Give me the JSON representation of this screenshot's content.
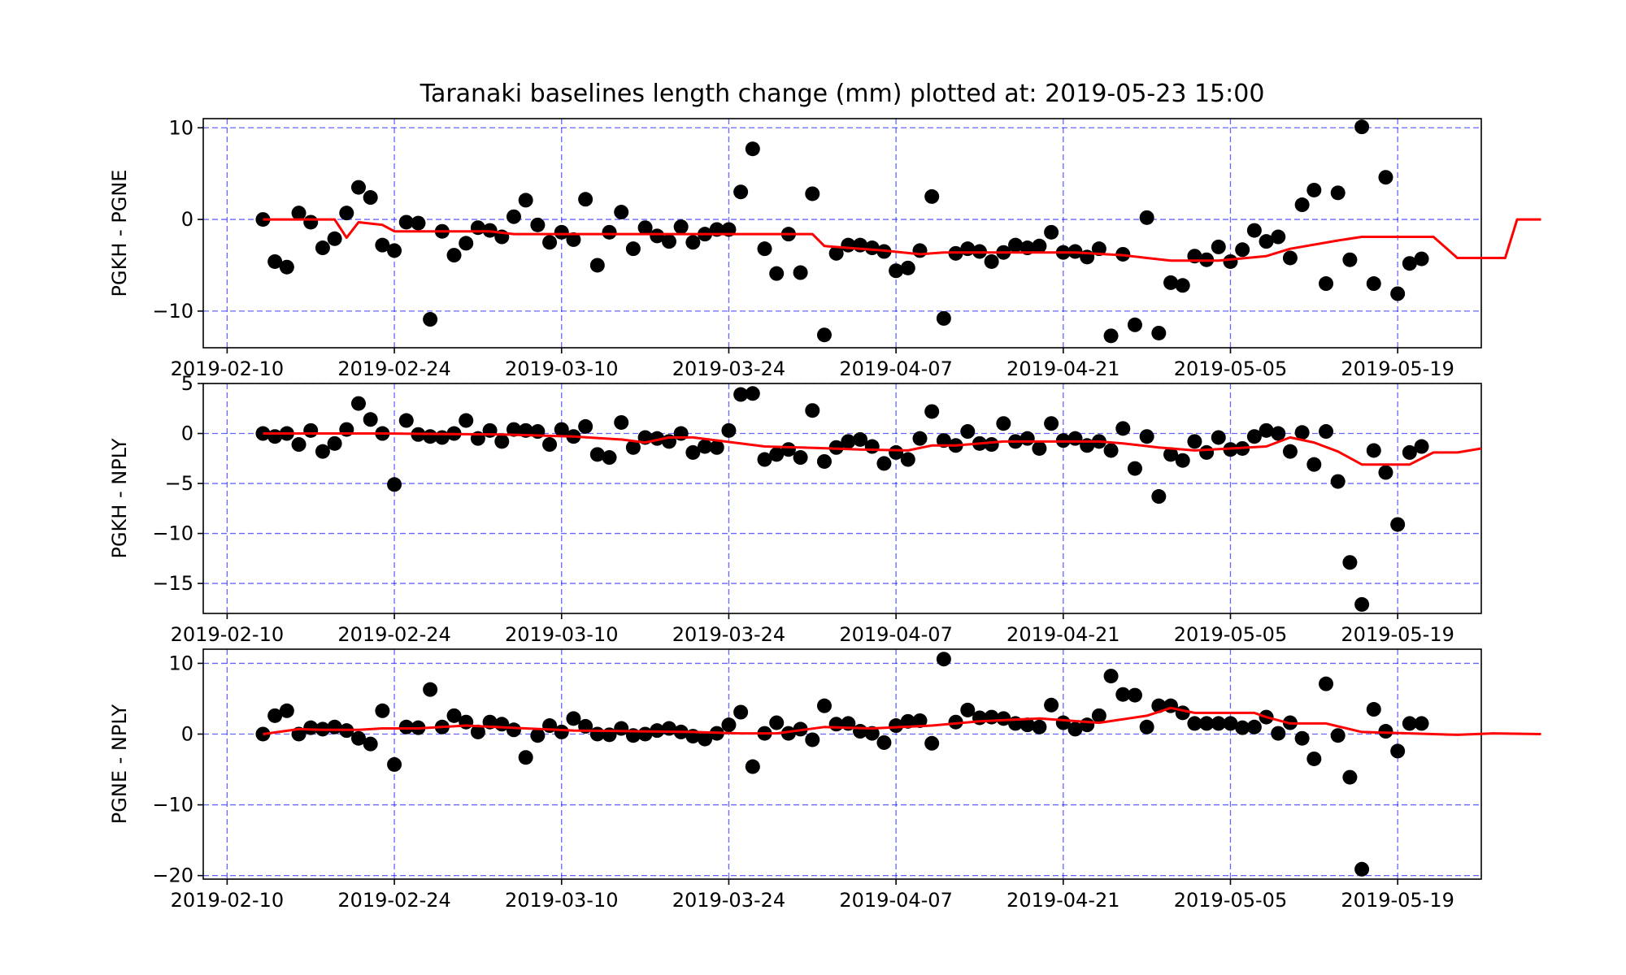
{
  "title": "Taranaki baselines length change (mm) plotted at: 2019-05-23 15:00",
  "colors": {
    "points": "#000000",
    "average_line": "#ff0000",
    "grid": "#0000ff",
    "frame": "#000000"
  },
  "chart_data": [
    {
      "type": "scatter",
      "ylabel": "PGKH - PGNE",
      "xlim": [
        "2019-02-08",
        "2019-05-26"
      ],
      "ylim": [
        -14,
        11
      ],
      "x_ticks": [
        "2019-02-10",
        "2019-02-24",
        "2019-03-10",
        "2019-03-24",
        "2019-04-07",
        "2019-04-21",
        "2019-05-05",
        "2019-05-19"
      ],
      "y_ticks": [
        10,
        0,
        -10
      ],
      "y_tick_labels": [
        "10",
        "0",
        "−10"
      ],
      "grid": true,
      "start_date": "2019-02-13",
      "points": [
        0,
        -4.6,
        -5.2,
        0.7,
        -0.3,
        -3.1,
        -2.1,
        0.7,
        3.5,
        2.4,
        -2.8,
        -3.4,
        -0.3,
        -0.4,
        -10.9,
        -1.3,
        -3.9,
        -2.6,
        -0.9,
        -1.2,
        -1.9,
        0.3,
        2.1,
        -0.6,
        -2.5,
        -1.4,
        -2.2,
        2.2,
        -5.0,
        -1.4,
        0.8,
        -3.2,
        -0.9,
        -1.8,
        -2.4,
        -0.8,
        -2.5,
        -1.6,
        -1.1,
        -1.1,
        3.0,
        7.7,
        -3.2,
        -5.9,
        -1.6,
        -5.8,
        2.8,
        -12.6,
        -3.7,
        -2.8,
        -2.8,
        -3.1,
        -3.5,
        -5.6,
        -5.3,
        -3.4,
        2.5,
        -10.8,
        -3.7,
        -3.2,
        -3.5,
        -4.6,
        -3.6,
        -2.8,
        -3.1,
        -2.9,
        -1.4,
        -3.6,
        -3.5,
        -4.1,
        -3.2,
        -12.7,
        -3.8,
        -11.5,
        0.2,
        -12.4,
        -6.9,
        -7.2,
        -4.0,
        -4.4,
        -3.0,
        -4.6,
        -3.3,
        -1.2,
        -2.4,
        -1.9,
        -4.2,
        1.6,
        3.2,
        -7.0,
        2.9,
        -4.4,
        10.1,
        -7.0,
        4.6,
        -8.1,
        -4.8,
        -4.3
      ],
      "average_line": [
        [
          0,
          0
        ],
        [
          6,
          0
        ],
        [
          7,
          -2.0
        ],
        [
          8,
          -0.3
        ],
        [
          10,
          -0.6
        ],
        [
          11,
          -1.3
        ],
        [
          19,
          -1.3
        ],
        [
          21,
          -1.6
        ],
        [
          33,
          -1.6
        ],
        [
          35,
          -1.6
        ],
        [
          46,
          -1.6
        ],
        [
          47,
          -2.9
        ],
        [
          52,
          -3.4
        ],
        [
          55,
          -3.8
        ],
        [
          57,
          -3.6
        ],
        [
          68,
          -3.6
        ],
        [
          72,
          -3.9
        ],
        [
          74,
          -4.2
        ],
        [
          76,
          -4.5
        ],
        [
          80,
          -4.5
        ],
        [
          84,
          -4.0
        ],
        [
          86,
          -3.2
        ],
        [
          90,
          -2.3
        ],
        [
          92,
          -1.9
        ],
        [
          98,
          -1.9
        ],
        [
          100,
          -4.2
        ],
        [
          104,
          -4.2
        ],
        [
          105,
          0
        ],
        [
          107,
          0
        ]
      ]
    },
    {
      "type": "scatter",
      "ylabel": "PGKH - NPLY",
      "xlim": [
        "2019-02-08",
        "2019-05-26"
      ],
      "ylim": [
        -18,
        5
      ],
      "x_ticks": [
        "2019-02-10",
        "2019-02-24",
        "2019-03-10",
        "2019-03-24",
        "2019-04-07",
        "2019-04-21",
        "2019-05-05",
        "2019-05-19"
      ],
      "y_ticks": [
        5,
        0,
        -5,
        -10,
        -15
      ],
      "y_tick_labels": [
        "5",
        "0",
        "−5",
        "−10",
        "−15"
      ],
      "grid": true,
      "start_date": "2019-02-13",
      "points": [
        0,
        -0.3,
        0,
        -1.1,
        0.3,
        -1.8,
        -1.0,
        0.4,
        3.0,
        1.4,
        0,
        -5.1,
        1.3,
        -0.1,
        -0.3,
        -0.4,
        0,
        1.3,
        -0.5,
        0.3,
        -0.8,
        0.4,
        0.3,
        0.2,
        -1.1,
        0.4,
        -0.3,
        0.7,
        -2.1,
        -2.4,
        1.1,
        -1.4,
        -0.4,
        -0.5,
        -0.8,
        0,
        -1.9,
        -1.3,
        -1.4,
        0.3,
        3.9,
        4.0,
        -2.6,
        -2.1,
        -1.6,
        -2.4,
        2.3,
        -2.8,
        -1.4,
        -0.8,
        -0.6,
        -1.3,
        -3.0,
        -1.9,
        -2.6,
        -0.5,
        2.2,
        -0.7,
        -1.2,
        0.2,
        -1.0,
        -1.1,
        1.0,
        -0.8,
        -0.5,
        -1.5,
        1.0,
        -0.7,
        -0.5,
        -1.2,
        -0.8,
        -1.7,
        0.5,
        -3.5,
        -0.3,
        -6.3,
        -2.1,
        -2.7,
        -0.8,
        -1.9,
        -0.4,
        -1.6,
        -1.5,
        -0.3,
        0.3,
        0,
        -1.8,
        0.1,
        -3.1,
        0.2,
        -4.8,
        -12.9,
        -17.1,
        -1.7,
        -3.9,
        -9.1,
        -1.9,
        -1.3
      ],
      "average_line": [
        [
          0,
          0
        ],
        [
          10,
          0
        ],
        [
          20,
          -0.1
        ],
        [
          26,
          -0.3
        ],
        [
          30,
          -0.6
        ],
        [
          32,
          -0.9
        ],
        [
          34,
          -0.4
        ],
        [
          36,
          -0.4
        ],
        [
          40,
          -1.0
        ],
        [
          42,
          -1.3
        ],
        [
          45,
          -1.4
        ],
        [
          50,
          -1.6
        ],
        [
          54,
          -1.7
        ],
        [
          56,
          -1.2
        ],
        [
          58,
          -1.2
        ],
        [
          62,
          -0.8
        ],
        [
          70,
          -0.8
        ],
        [
          72,
          -1.0
        ],
        [
          75,
          -1.4
        ],
        [
          78,
          -1.7
        ],
        [
          81,
          -1.5
        ],
        [
          84,
          -1.3
        ],
        [
          86,
          -0.4
        ],
        [
          88,
          -0.9
        ],
        [
          90,
          -1.8
        ],
        [
          92,
          -3.1
        ],
        [
          96,
          -3.1
        ],
        [
          98,
          -1.9
        ],
        [
          100,
          -1.9
        ],
        [
          102,
          -1.5
        ]
      ]
    },
    {
      "type": "scatter",
      "ylabel": "PGNE - NPLY",
      "xlim": [
        "2019-02-08",
        "2019-05-26"
      ],
      "ylim": [
        -20.5,
        12
      ],
      "x_ticks": [
        "2019-02-10",
        "2019-02-24",
        "2019-03-10",
        "2019-03-24",
        "2019-04-07",
        "2019-04-21",
        "2019-05-05",
        "2019-05-19"
      ],
      "y_ticks": [
        10,
        0,
        -10,
        -20
      ],
      "y_tick_labels": [
        "10",
        "0",
        "−10",
        "−20"
      ],
      "grid": true,
      "start_date": "2019-02-13",
      "points": [
        0,
        2.6,
        3.3,
        0,
        0.9,
        0.7,
        1.0,
        0.5,
        -0.6,
        -1.4,
        3.3,
        -4.3,
        1.0,
        0.9,
        6.3,
        1.0,
        2.6,
        1.7,
        0.3,
        1.7,
        1.4,
        0.6,
        -3.3,
        -0.2,
        1.2,
        0.3,
        2.2,
        1.1,
        0,
        -0.1,
        0.8,
        -0.2,
        0,
        0.5,
        0.8,
        0.3,
        -0.3,
        -0.7,
        0.1,
        1.3,
        3.1,
        -4.6,
        0.1,
        1.6,
        0.1,
        0.7,
        -0.8,
        4.0,
        1.4,
        1.5,
        0.4,
        0.1,
        -1.2,
        1.2,
        1.8,
        1.9,
        -1.3,
        10.6,
        1.7,
        3.4,
        2.3,
        2.4,
        2.2,
        1.5,
        1.3,
        1.0,
        4.1,
        1.6,
        0.7,
        1.3,
        2.6,
        8.2,
        5.6,
        5.5,
        1.0,
        4.0,
        4.0,
        3.0,
        1.5,
        1.5,
        1.5,
        1.5,
        0.9,
        1.0,
        2.4,
        0.1,
        1.6,
        -0.6,
        -3.5,
        7.1,
        -0.2,
        -6.1,
        -19.1,
        3.5,
        0.4,
        -2.4,
        1.5,
        1.5
      ],
      "average_line": [
        [
          0,
          0
        ],
        [
          3,
          0.7
        ],
        [
          5,
          0.6
        ],
        [
          8,
          0.6
        ],
        [
          10,
          0.8
        ],
        [
          13,
          0.8
        ],
        [
          17,
          1.2
        ],
        [
          22,
          0.8
        ],
        [
          26,
          0.5
        ],
        [
          31,
          0.4
        ],
        [
          36,
          0.3
        ],
        [
          40,
          0.1
        ],
        [
          43,
          0.1
        ],
        [
          47,
          1.0
        ],
        [
          51,
          0.8
        ],
        [
          56,
          1.2
        ],
        [
          60,
          1.8
        ],
        [
          65,
          2.2
        ],
        [
          70,
          1.6
        ],
        [
          74,
          2.6
        ],
        [
          76,
          3.7
        ],
        [
          78,
          3.0
        ],
        [
          83,
          3.0
        ],
        [
          84,
          2.4
        ],
        [
          86,
          1.5
        ],
        [
          89,
          1.5
        ],
        [
          92,
          0.3
        ],
        [
          96,
          0.1
        ],
        [
          100,
          -0.1
        ],
        [
          103,
          0.1
        ],
        [
          107,
          0
        ]
      ]
    }
  ]
}
